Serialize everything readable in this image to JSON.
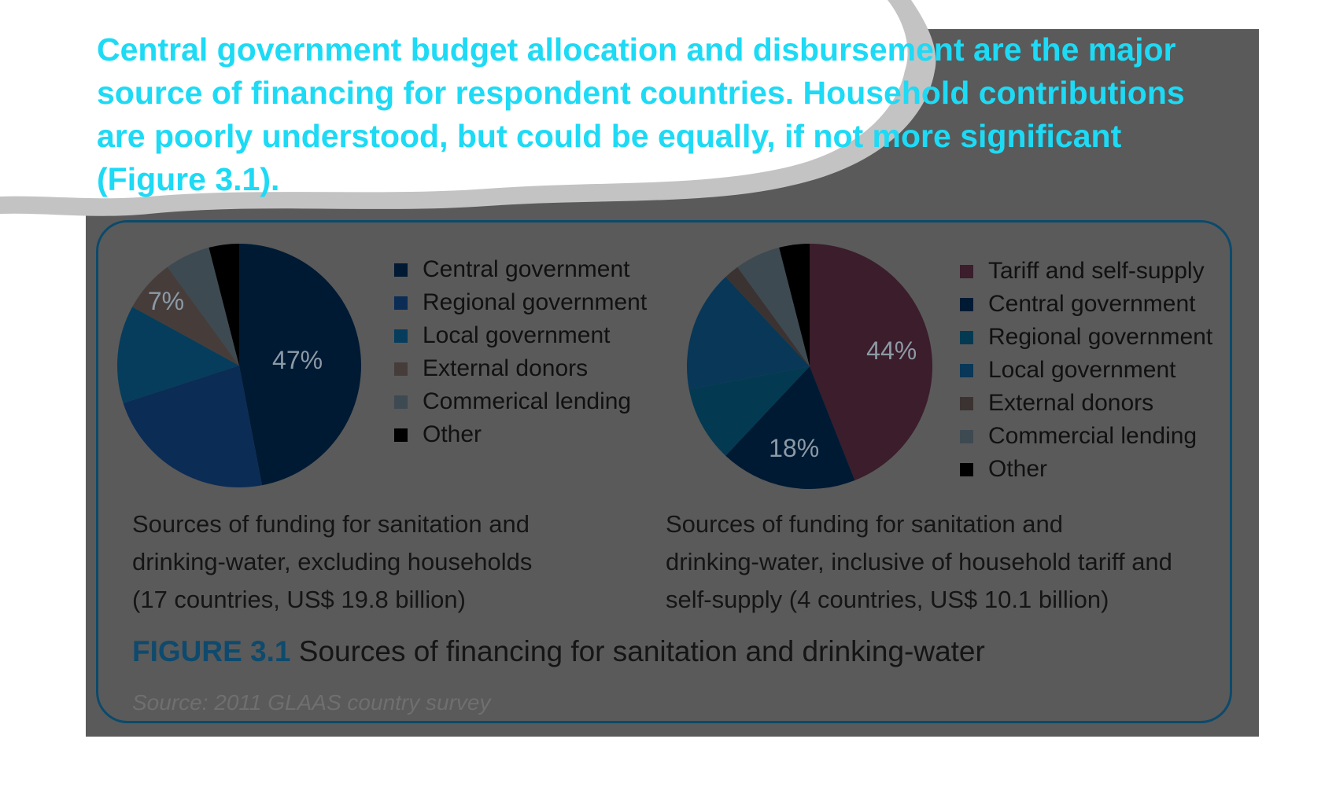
{
  "headline": "Central government budget allocation and disbursement are the major source of financing for respondent countries. Household contributions are poorly understood, but could be equally, if not more significant (Figure 3.1).",
  "colors": {
    "background_panel": "#5a5a5a",
    "headline": "#1ddaf5",
    "frame_border": "#0b4a6c",
    "figure_label": "#0e4a6d"
  },
  "chart_data": [
    {
      "type": "pie",
      "title": "Sources of funding for sanitation and drinking-water, excluding households (17 countries, US$ 19.8 billion)",
      "caption_lines": [
        "Sources of funding for sanitation and",
        "drinking-water, excluding households",
        "(17 countries, US$ 19.8 billion)"
      ],
      "legend_position": "right",
      "slices": [
        {
          "label": "Central government",
          "value": 47,
          "color": "#001a33",
          "data_label": "47%"
        },
        {
          "label": "Regional government",
          "value": 23,
          "color": "#0b2c55",
          "data_label": ""
        },
        {
          "label": "Local government",
          "value": 13,
          "color": "#063d5c",
          "data_label": ""
        },
        {
          "label": "External donors",
          "value": 7,
          "color": "#463d3b",
          "data_label": "7%"
        },
        {
          "label": "Commerical lending",
          "value": 6,
          "color": "#3e4a52",
          "data_label": ""
        },
        {
          "label": "Other",
          "value": 4,
          "color": "#000000",
          "data_label": ""
        }
      ]
    },
    {
      "type": "pie",
      "title": "Sources of funding for sanitation and drinking-water, inclusive of household tariff and self-supply (4 countries, US$ 10.1 billion)",
      "caption_lines": [
        "Sources of funding for sanitation and",
        "drinking-water, inclusive of household tariff and",
        "self-supply (4 countries, US$ 10.1 billion)"
      ],
      "legend_position": "right",
      "slices": [
        {
          "label": "Tariff and self-supply",
          "value": 44,
          "color": "#3b1d2b",
          "data_label": "44%"
        },
        {
          "label": "Central government",
          "value": 18,
          "color": "#001a33",
          "data_label": "18%"
        },
        {
          "label": "Regional government",
          "value": 10,
          "color": "#033a52",
          "data_label": ""
        },
        {
          "label": "Local government",
          "value": 16,
          "color": "#083757",
          "data_label": ""
        },
        {
          "label": "External donors",
          "value": 2,
          "color": "#3b3331",
          "data_label": ""
        },
        {
          "label": "Commercial lending",
          "value": 6,
          "color": "#3e4a52",
          "data_label": ""
        },
        {
          "label": "Other",
          "value": 4,
          "color": "#000000",
          "data_label": ""
        }
      ]
    }
  ],
  "figure": {
    "label": "FIGURE 3.1",
    "title": " Sources of financing for sanitation and drinking-water"
  },
  "source": "Source: 2011 GLAAS country survey"
}
